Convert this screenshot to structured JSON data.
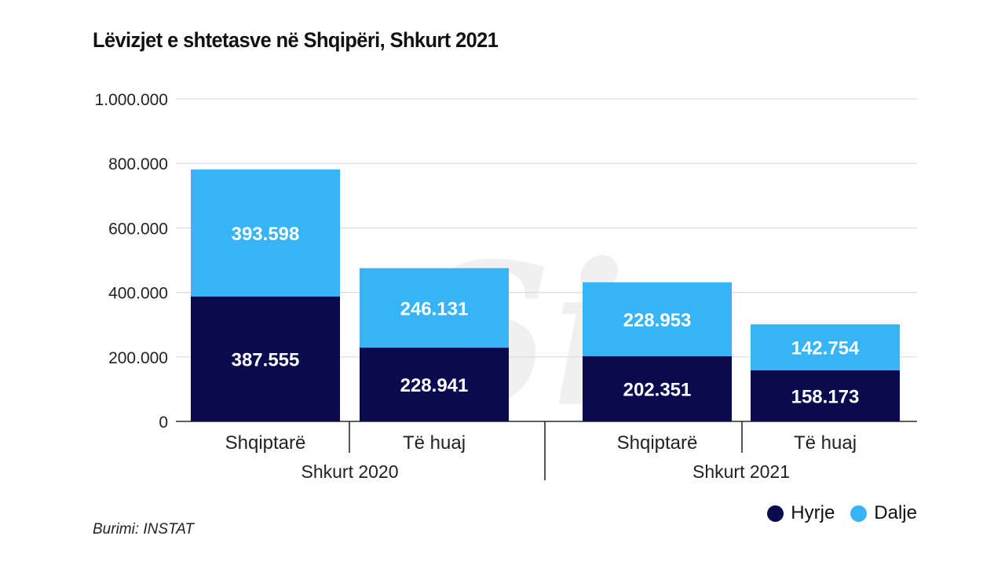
{
  "chart_data": {
    "type": "bar",
    "stacked": true,
    "title": "Lëvizjet e shtetasve në Shqipëri, Shkurt 2021",
    "groups": [
      {
        "label": "Shkurt 2020",
        "categories": [
          "Shqiptarë",
          "Të huaj"
        ]
      },
      {
        "label": "Shkurt 2021",
        "categories": [
          "Shqiptarë",
          "Të huaj"
        ]
      }
    ],
    "series": [
      {
        "name": "Hyrje",
        "color": "#0a0b4e",
        "values": [
          387555,
          228941,
          202351,
          158173
        ],
        "labels": [
          "387.555",
          "228.941",
          "202.351",
          "158.173"
        ]
      },
      {
        "name": "Dalje",
        "color": "#37b3f7",
        "values": [
          393598,
          246131,
          228953,
          142754
        ],
        "labels": [
          "393.598",
          "246.131",
          "228.953",
          "142.754"
        ]
      }
    ],
    "yticks": [
      0,
      200000,
      400000,
      600000,
      800000,
      1000000
    ],
    "ytick_labels": [
      "0",
      "200.000",
      "400.000",
      "600.000",
      "800.000",
      "1.000.000"
    ],
    "ylim": [
      0,
      1000000
    ],
    "legend_position": "bottom-right"
  },
  "source": "Burimi: INSTAT",
  "watermark": "Si"
}
